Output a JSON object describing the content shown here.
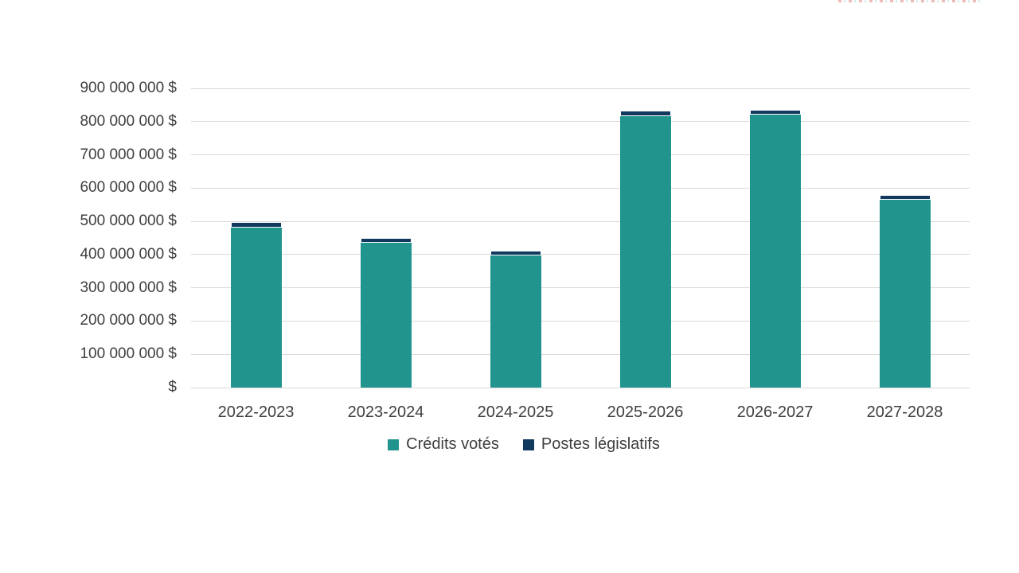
{
  "page": {
    "background": "#FFFFFF"
  },
  "colors": {
    "teal": "#21948E",
    "navy": "#12395E",
    "gridline": "#D9D9D9",
    "text": "#3F3F3F"
  },
  "chart_data": {
    "type": "bar",
    "stacked": true,
    "title": "",
    "xlabel": "",
    "ylabel": "",
    "grid": true,
    "legend_position": "bottom",
    "categories": [
      "2022-2023",
      "2023-2024",
      "2024-2025",
      "2025-2026",
      "2026-2027",
      "2027-2028"
    ],
    "series": [
      {
        "name": "Crédits votés",
        "color": "#21948E",
        "values": [
          482000000,
          435000000,
          398000000,
          816000000,
          820000000,
          565000000
        ]
      },
      {
        "name": "Postes législatifs",
        "color": "#12395E",
        "values": [
          15000000,
          14000000,
          13000000,
          16000000,
          16000000,
          15000000
        ]
      }
    ],
    "ylim": [
      0,
      900000000
    ],
    "y_ticks": [
      {
        "value": 900000000,
        "label": "900 000 000 $"
      },
      {
        "value": 800000000,
        "label": "800 000 000 $"
      },
      {
        "value": 700000000,
        "label": "700 000 000 $"
      },
      {
        "value": 600000000,
        "label": "600 000 000 $"
      },
      {
        "value": 500000000,
        "label": "500 000 000 $"
      },
      {
        "value": 400000000,
        "label": "400 000 000 $"
      },
      {
        "value": 300000000,
        "label": "300 000 000 $"
      },
      {
        "value": 200000000,
        "label": "200 000 000 $"
      },
      {
        "value": 100000000,
        "label": "100 000 000 $"
      },
      {
        "value": 0,
        "label": "$"
      }
    ]
  }
}
